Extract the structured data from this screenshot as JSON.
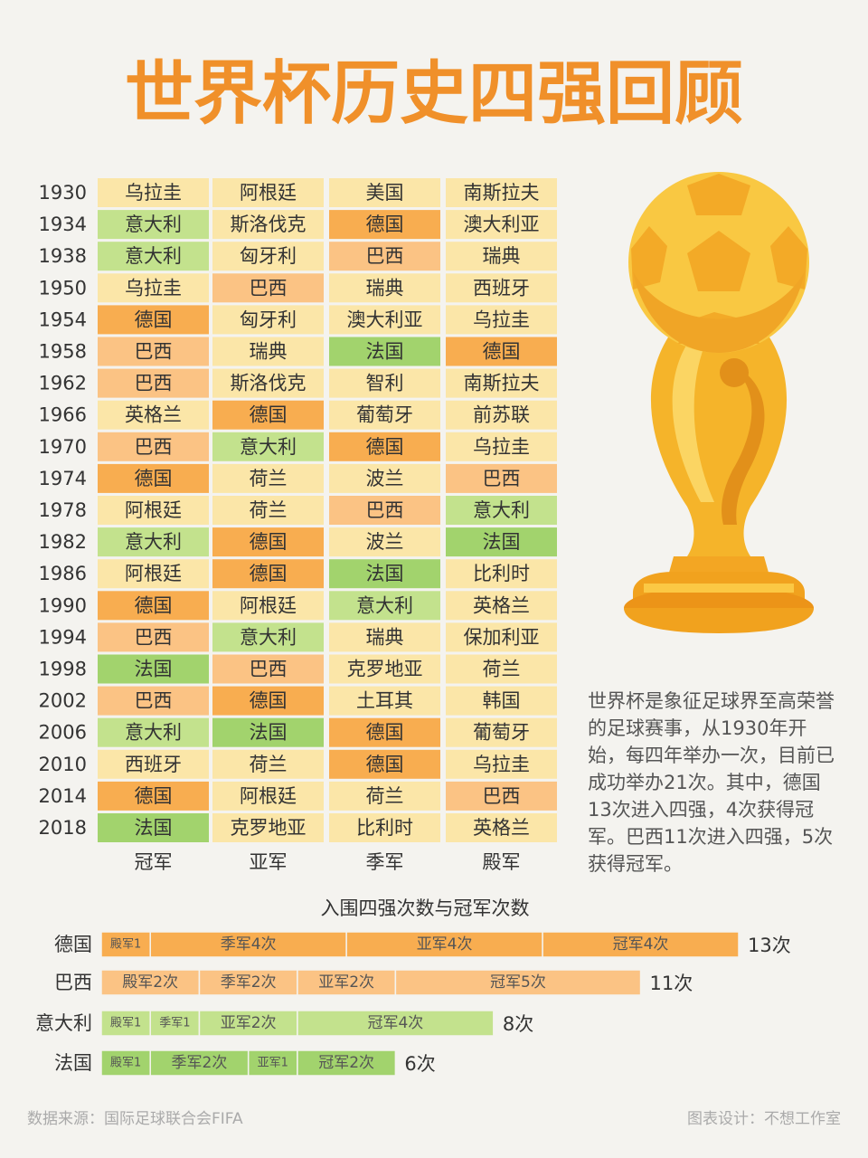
{
  "header": {
    "title": "世界杯历史四强回顾"
  },
  "table": {
    "columns": [
      "冠军",
      "亚军",
      "季军",
      "殿军"
    ],
    "rows": [
      [
        "1930",
        "乌拉圭",
        "阿根廷",
        "美国",
        "南斯拉夫"
      ],
      [
        "1934",
        "意大利",
        "斯洛伐克",
        "德国",
        "澳大利亚"
      ],
      [
        "1938",
        "意大利",
        "匈牙利",
        "巴西",
        "瑞典"
      ],
      [
        "1950",
        "乌拉圭",
        "巴西",
        "瑞典",
        "西班牙"
      ],
      [
        "1954",
        "德国",
        "匈牙利",
        "澳大利亚",
        "乌拉圭"
      ],
      [
        "1958",
        "巴西",
        "瑞典",
        "法国",
        "德国"
      ],
      [
        "1962",
        "巴西",
        "斯洛伐克",
        "智利",
        "南斯拉夫"
      ],
      [
        "1966",
        "英格兰",
        "德国",
        "葡萄牙",
        "前苏联"
      ],
      [
        "1970",
        "巴西",
        "意大利",
        "德国",
        "乌拉圭"
      ],
      [
        "1974",
        "德国",
        "荷兰",
        "波兰",
        "巴西"
      ],
      [
        "1978",
        "阿根廷",
        "荷兰",
        "巴西",
        "意大利"
      ],
      [
        "1982",
        "意大利",
        "德国",
        "波兰",
        "法国"
      ],
      [
        "1986",
        "阿根廷",
        "德国",
        "法国",
        "比利时"
      ],
      [
        "1990",
        "德国",
        "阿根廷",
        "意大利",
        "英格兰"
      ],
      [
        "1994",
        "巴西",
        "意大利",
        "瑞典",
        "保加利亚"
      ],
      [
        "1998",
        "法国",
        "巴西",
        "克罗地亚",
        "荷兰"
      ],
      [
        "2002",
        "巴西",
        "德国",
        "土耳其",
        "韩国"
      ],
      [
        "2006",
        "意大利",
        "法国",
        "德国",
        "葡萄牙"
      ],
      [
        "2010",
        "西班牙",
        "荷兰",
        "德国",
        "乌拉圭"
      ],
      [
        "2014",
        "德国",
        "阿根廷",
        "荷兰",
        "巴西"
      ],
      [
        "2018",
        "法国",
        "克罗地亚",
        "比利时",
        "英格兰"
      ]
    ]
  },
  "description": "世界杯是象征足球界至高荣誉的足球赛事，从1930年开始，每四年举办一次，目前已成功举办21次。其中，德国13次进入四强，4次获得冠军。巴西11次进入四强，5次获得冠军。",
  "chart_data": {
    "type": "stacked-barh",
    "title": "入围四强次数与冠军次数",
    "categories": [
      "德国",
      "巴西",
      "意大利",
      "法国"
    ],
    "colors": [
      "#f8ad50",
      "#fbc384",
      "#c3e28d",
      "#a2d36d"
    ],
    "series": [
      {
        "values": [
          1,
          2,
          1,
          1
        ],
        "value_labels": [
          "殿军1",
          "殿军2次",
          "殿军1",
          "殿军1"
        ]
      },
      {
        "values": [
          4,
          2,
          1,
          2
        ],
        "value_labels": [
          "季军4次",
          "季军2次",
          "季军1",
          "季军2次"
        ]
      },
      {
        "values": [
          4,
          2,
          2,
          1
        ],
        "value_labels": [
          "亚军4次",
          "亚军2次",
          "亚军2次",
          "亚军1"
        ]
      },
      {
        "values": [
          4,
          5,
          4,
          2
        ],
        "value_labels": [
          "冠军4次",
          "冠军5次",
          "冠军4次",
          "冠军2次"
        ]
      }
    ],
    "totals": [
      13,
      11,
      8,
      6
    ],
    "total_labels": [
      "13次",
      "11次",
      "8次",
      "6次"
    ]
  },
  "footer": {
    "source": "数据来源：国际足球联合会FIFA",
    "credit": "图表设计：不想工作室"
  }
}
